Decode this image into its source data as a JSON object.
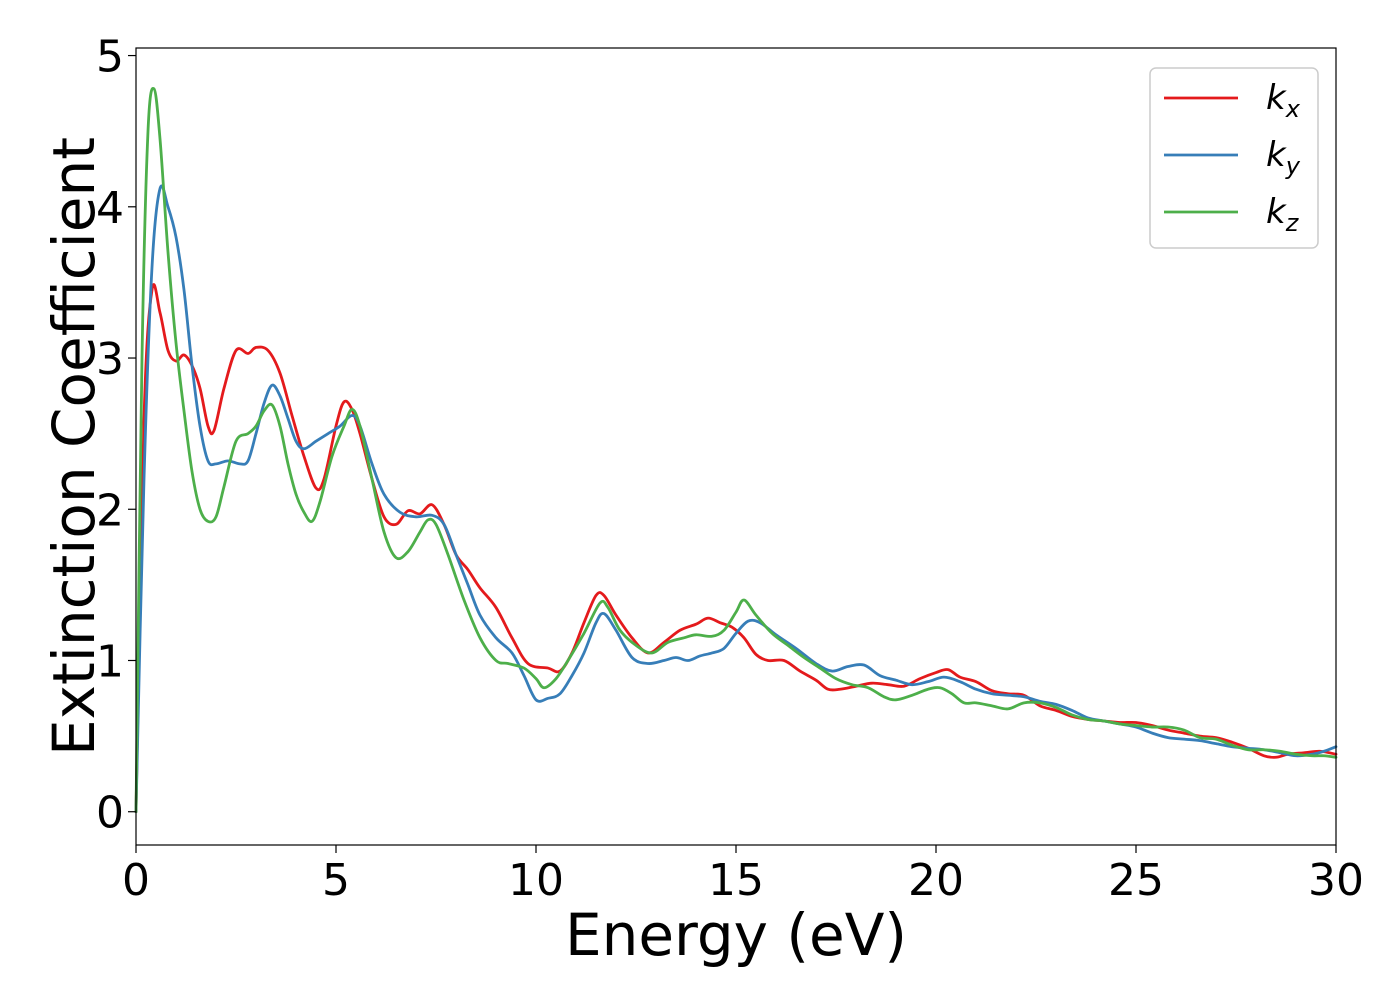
{
  "chart_data": {
    "type": "line",
    "title": "",
    "xlabel": "Energy (eV)",
    "ylabel": "Extinction Coefficient",
    "xlim": [
      0,
      30
    ],
    "ylim": [
      -0.22,
      5.05
    ],
    "xticks": [
      0,
      5,
      10,
      15,
      20,
      25,
      30
    ],
    "yticks": [
      0,
      1,
      2,
      3,
      4,
      5
    ],
    "grid": false,
    "legend_position": "top-right",
    "series": [
      {
        "name": "k_x",
        "label_main": "k",
        "label_sub": "x",
        "color": "#e41a1c",
        "points": [
          [
            0,
            0
          ],
          [
            0.2,
            2.6
          ],
          [
            0.4,
            3.45
          ],
          [
            0.6,
            3.3
          ],
          [
            0.8,
            3.05
          ],
          [
            1.0,
            2.98
          ],
          [
            1.2,
            3.02
          ],
          [
            1.4,
            2.95
          ],
          [
            1.6,
            2.8
          ],
          [
            1.8,
            2.55
          ],
          [
            1.95,
            2.52
          ],
          [
            2.2,
            2.8
          ],
          [
            2.5,
            3.05
          ],
          [
            2.8,
            3.03
          ],
          [
            3.0,
            3.07
          ],
          [
            3.3,
            3.05
          ],
          [
            3.6,
            2.9
          ],
          [
            3.9,
            2.62
          ],
          [
            4.2,
            2.35
          ],
          [
            4.5,
            2.14
          ],
          [
            4.7,
            2.2
          ],
          [
            5.0,
            2.55
          ],
          [
            5.2,
            2.71
          ],
          [
            5.4,
            2.66
          ],
          [
            5.6,
            2.5
          ],
          [
            5.9,
            2.2
          ],
          [
            6.2,
            1.95
          ],
          [
            6.5,
            1.9
          ],
          [
            6.8,
            1.99
          ],
          [
            7.1,
            1.97
          ],
          [
            7.4,
            2.03
          ],
          [
            7.7,
            1.9
          ],
          [
            8.0,
            1.7
          ],
          [
            8.3,
            1.6
          ],
          [
            8.6,
            1.48
          ],
          [
            9.0,
            1.35
          ],
          [
            9.4,
            1.15
          ],
          [
            9.8,
            0.98
          ],
          [
            10.3,
            0.95
          ],
          [
            10.6,
            0.93
          ],
          [
            10.9,
            1.05
          ],
          [
            11.2,
            1.25
          ],
          [
            11.5,
            1.43
          ],
          [
            11.7,
            1.43
          ],
          [
            12.0,
            1.3
          ],
          [
            12.4,
            1.15
          ],
          [
            12.8,
            1.05
          ],
          [
            13.2,
            1.12
          ],
          [
            13.6,
            1.2
          ],
          [
            14.0,
            1.24
          ],
          [
            14.3,
            1.28
          ],
          [
            14.6,
            1.25
          ],
          [
            14.9,
            1.22
          ],
          [
            15.2,
            1.15
          ],
          [
            15.5,
            1.04
          ],
          [
            15.8,
            1.0
          ],
          [
            16.2,
            1.0
          ],
          [
            16.6,
            0.93
          ],
          [
            17.0,
            0.87
          ],
          [
            17.3,
            0.81
          ],
          [
            17.6,
            0.81
          ],
          [
            18.0,
            0.83
          ],
          [
            18.4,
            0.85
          ],
          [
            18.8,
            0.84
          ],
          [
            19.2,
            0.83
          ],
          [
            19.6,
            0.88
          ],
          [
            20.0,
            0.92
          ],
          [
            20.3,
            0.94
          ],
          [
            20.6,
            0.89
          ],
          [
            21.0,
            0.86
          ],
          [
            21.4,
            0.8
          ],
          [
            21.8,
            0.78
          ],
          [
            22.2,
            0.77
          ],
          [
            22.6,
            0.7
          ],
          [
            23.0,
            0.67
          ],
          [
            23.4,
            0.63
          ],
          [
            23.8,
            0.61
          ],
          [
            24.2,
            0.6
          ],
          [
            24.6,
            0.59
          ],
          [
            25.0,
            0.59
          ],
          [
            25.4,
            0.57
          ],
          [
            25.8,
            0.54
          ],
          [
            26.2,
            0.52
          ],
          [
            26.6,
            0.5
          ],
          [
            27.0,
            0.49
          ],
          [
            27.4,
            0.46
          ],
          [
            27.8,
            0.42
          ],
          [
            28.2,
            0.37
          ],
          [
            28.5,
            0.36
          ],
          [
            28.8,
            0.38
          ],
          [
            29.2,
            0.39
          ],
          [
            29.6,
            0.4
          ],
          [
            30.0,
            0.38
          ]
        ]
      },
      {
        "name": "k_y",
        "label_main": "k",
        "label_sub": "y",
        "color": "#377eb8",
        "points": [
          [
            0,
            0
          ],
          [
            0.2,
            2.2
          ],
          [
            0.4,
            3.6
          ],
          [
            0.6,
            4.12
          ],
          [
            0.8,
            4.0
          ],
          [
            1.0,
            3.8
          ],
          [
            1.2,
            3.45
          ],
          [
            1.4,
            2.95
          ],
          [
            1.6,
            2.55
          ],
          [
            1.8,
            2.32
          ],
          [
            2.0,
            2.3
          ],
          [
            2.3,
            2.32
          ],
          [
            2.6,
            2.3
          ],
          [
            2.8,
            2.32
          ],
          [
            3.0,
            2.5
          ],
          [
            3.2,
            2.7
          ],
          [
            3.4,
            2.82
          ],
          [
            3.6,
            2.75
          ],
          [
            3.8,
            2.6
          ],
          [
            4.0,
            2.45
          ],
          [
            4.2,
            2.4
          ],
          [
            4.5,
            2.45
          ],
          [
            4.8,
            2.5
          ],
          [
            5.1,
            2.55
          ],
          [
            5.4,
            2.62
          ],
          [
            5.6,
            2.55
          ],
          [
            5.9,
            2.3
          ],
          [
            6.2,
            2.1
          ],
          [
            6.6,
            1.98
          ],
          [
            7.0,
            1.95
          ],
          [
            7.4,
            1.96
          ],
          [
            7.7,
            1.9
          ],
          [
            8.0,
            1.7
          ],
          [
            8.3,
            1.5
          ],
          [
            8.6,
            1.3
          ],
          [
            9.0,
            1.15
          ],
          [
            9.4,
            1.05
          ],
          [
            9.7,
            0.9
          ],
          [
            10.0,
            0.74
          ],
          [
            10.3,
            0.75
          ],
          [
            10.6,
            0.78
          ],
          [
            10.9,
            0.9
          ],
          [
            11.2,
            1.05
          ],
          [
            11.5,
            1.25
          ],
          [
            11.7,
            1.31
          ],
          [
            12.0,
            1.2
          ],
          [
            12.4,
            1.02
          ],
          [
            12.8,
            0.98
          ],
          [
            13.2,
            1.0
          ],
          [
            13.5,
            1.02
          ],
          [
            13.8,
            1.0
          ],
          [
            14.1,
            1.03
          ],
          [
            14.4,
            1.05
          ],
          [
            14.7,
            1.08
          ],
          [
            15.0,
            1.18
          ],
          [
            15.3,
            1.26
          ],
          [
            15.6,
            1.25
          ],
          [
            16.0,
            1.17
          ],
          [
            16.5,
            1.08
          ],
          [
            17.0,
            0.98
          ],
          [
            17.4,
            0.93
          ],
          [
            17.8,
            0.96
          ],
          [
            18.2,
            0.97
          ],
          [
            18.6,
            0.9
          ],
          [
            19.0,
            0.87
          ],
          [
            19.4,
            0.84
          ],
          [
            19.8,
            0.86
          ],
          [
            20.2,
            0.89
          ],
          [
            20.6,
            0.86
          ],
          [
            21.0,
            0.81
          ],
          [
            21.4,
            0.78
          ],
          [
            21.8,
            0.77
          ],
          [
            22.2,
            0.76
          ],
          [
            22.6,
            0.73
          ],
          [
            23.0,
            0.71
          ],
          [
            23.4,
            0.67
          ],
          [
            23.8,
            0.62
          ],
          [
            24.2,
            0.6
          ],
          [
            24.6,
            0.58
          ],
          [
            25.0,
            0.56
          ],
          [
            25.4,
            0.52
          ],
          [
            25.8,
            0.49
          ],
          [
            26.2,
            0.48
          ],
          [
            26.6,
            0.47
          ],
          [
            27.0,
            0.45
          ],
          [
            27.4,
            0.43
          ],
          [
            27.8,
            0.42
          ],
          [
            28.2,
            0.41
          ],
          [
            28.6,
            0.39
          ],
          [
            29.0,
            0.37
          ],
          [
            29.4,
            0.38
          ],
          [
            29.7,
            0.4
          ],
          [
            30.0,
            0.43
          ]
        ]
      },
      {
        "name": "k_z",
        "label_main": "k",
        "label_sub": "z",
        "color": "#4daf4a",
        "points": [
          [
            0,
            0
          ],
          [
            0.15,
            3.0
          ],
          [
            0.3,
            4.5
          ],
          [
            0.45,
            4.78
          ],
          [
            0.6,
            4.45
          ],
          [
            0.8,
            3.7
          ],
          [
            1.0,
            3.1
          ],
          [
            1.2,
            2.65
          ],
          [
            1.4,
            2.25
          ],
          [
            1.6,
            2.0
          ],
          [
            1.8,
            1.92
          ],
          [
            2.0,
            1.95
          ],
          [
            2.2,
            2.15
          ],
          [
            2.5,
            2.45
          ],
          [
            2.8,
            2.5
          ],
          [
            3.0,
            2.55
          ],
          [
            3.2,
            2.65
          ],
          [
            3.4,
            2.69
          ],
          [
            3.6,
            2.55
          ],
          [
            3.8,
            2.3
          ],
          [
            4.0,
            2.1
          ],
          [
            4.2,
            1.98
          ],
          [
            4.4,
            1.92
          ],
          [
            4.6,
            2.05
          ],
          [
            4.9,
            2.35
          ],
          [
            5.2,
            2.55
          ],
          [
            5.4,
            2.66
          ],
          [
            5.6,
            2.55
          ],
          [
            5.9,
            2.2
          ],
          [
            6.2,
            1.85
          ],
          [
            6.5,
            1.68
          ],
          [
            6.8,
            1.72
          ],
          [
            7.1,
            1.85
          ],
          [
            7.3,
            1.93
          ],
          [
            7.5,
            1.9
          ],
          [
            7.8,
            1.7
          ],
          [
            8.2,
            1.4
          ],
          [
            8.6,
            1.15
          ],
          [
            9.0,
            1.0
          ],
          [
            9.3,
            0.98
          ],
          [
            9.7,
            0.95
          ],
          [
            10.0,
            0.88
          ],
          [
            10.2,
            0.82
          ],
          [
            10.5,
            0.88
          ],
          [
            10.8,
            1.0
          ],
          [
            11.2,
            1.18
          ],
          [
            11.6,
            1.38
          ],
          [
            11.8,
            1.35
          ],
          [
            12.1,
            1.2
          ],
          [
            12.5,
            1.1
          ],
          [
            12.9,
            1.05
          ],
          [
            13.3,
            1.12
          ],
          [
            13.7,
            1.15
          ],
          [
            14.0,
            1.17
          ],
          [
            14.4,
            1.16
          ],
          [
            14.7,
            1.2
          ],
          [
            15.0,
            1.32
          ],
          [
            15.2,
            1.4
          ],
          [
            15.5,
            1.3
          ],
          [
            15.9,
            1.18
          ],
          [
            16.3,
            1.1
          ],
          [
            16.7,
            1.02
          ],
          [
            17.1,
            0.95
          ],
          [
            17.5,
            0.88
          ],
          [
            17.9,
            0.84
          ],
          [
            18.3,
            0.82
          ],
          [
            18.7,
            0.76
          ],
          [
            19.0,
            0.74
          ],
          [
            19.4,
            0.77
          ],
          [
            19.8,
            0.81
          ],
          [
            20.1,
            0.82
          ],
          [
            20.4,
            0.78
          ],
          [
            20.7,
            0.72
          ],
          [
            21.0,
            0.72
          ],
          [
            21.4,
            0.7
          ],
          [
            21.8,
            0.68
          ],
          [
            22.2,
            0.72
          ],
          [
            22.6,
            0.72
          ],
          [
            23.0,
            0.69
          ],
          [
            23.4,
            0.64
          ],
          [
            23.8,
            0.61
          ],
          [
            24.2,
            0.6
          ],
          [
            24.6,
            0.58
          ],
          [
            25.0,
            0.57
          ],
          [
            25.4,
            0.56
          ],
          [
            25.8,
            0.56
          ],
          [
            26.2,
            0.54
          ],
          [
            26.6,
            0.49
          ],
          [
            27.0,
            0.48
          ],
          [
            27.4,
            0.44
          ],
          [
            27.8,
            0.41
          ],
          [
            28.2,
            0.41
          ],
          [
            28.6,
            0.4
          ],
          [
            29.0,
            0.38
          ],
          [
            29.4,
            0.37
          ],
          [
            29.7,
            0.37
          ],
          [
            30.0,
            0.36
          ]
        ]
      }
    ]
  }
}
